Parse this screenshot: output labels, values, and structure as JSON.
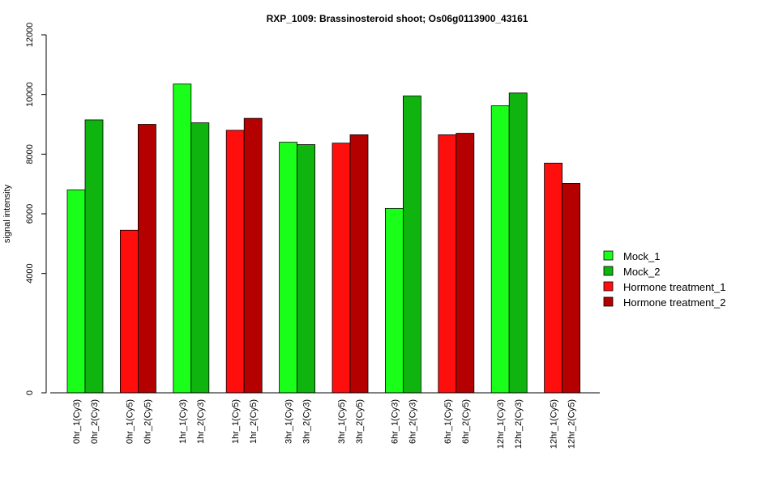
{
  "chart_data": {
    "type": "bar",
    "title": "RXP_1009: Brassinosteroid shoot; Os06g0113900_43161",
    "xlabel": "",
    "ylabel": "signal intensity",
    "ylim": [
      0,
      12000
    ],
    "yticks": [
      0,
      4000,
      6000,
      8000,
      10000,
      12000
    ],
    "legend_position": "right",
    "legend": [
      {
        "name": "Mock_1",
        "color": "#19ff19"
      },
      {
        "name": "Mock_2",
        "color": "#0fb40f"
      },
      {
        "name": "Hormone treatment_1",
        "color": "#ff0e0e"
      },
      {
        "name": "Hormone treatment_2",
        "color": "#b50000"
      }
    ],
    "groups": [
      {
        "bars": [
          {
            "label": "0hr_1(Cy3)",
            "value": 6800,
            "color": "#19ff19"
          },
          {
            "label": "0hr_2(Cy3)",
            "value": 9150,
            "color": "#0fb40f"
          }
        ]
      },
      {
        "bars": [
          {
            "label": "0hr_1(Cy5)",
            "value": 5450,
            "color": "#ff0e0e"
          },
          {
            "label": "0hr_2(Cy5)",
            "value": 9000,
            "color": "#b50000"
          }
        ]
      },
      {
        "bars": [
          {
            "label": "1hr_1(Cy3)",
            "value": 10350,
            "color": "#19ff19"
          },
          {
            "label": "1hr_2(Cy3)",
            "value": 9050,
            "color": "#0fb40f"
          }
        ]
      },
      {
        "bars": [
          {
            "label": "1hr_1(Cy5)",
            "value": 8800,
            "color": "#ff0e0e"
          },
          {
            "label": "1hr_2(Cy5)",
            "value": 9200,
            "color": "#b50000"
          }
        ]
      },
      {
        "bars": [
          {
            "label": "3hr_1(Cy3)",
            "value": 8400,
            "color": "#19ff19"
          },
          {
            "label": "3hr_2(Cy3)",
            "value": 8320,
            "color": "#0fb40f"
          }
        ]
      },
      {
        "bars": [
          {
            "label": "3hr_1(Cy5)",
            "value": 8370,
            "color": "#ff0e0e"
          },
          {
            "label": "3hr_2(Cy5)",
            "value": 8650,
            "color": "#b50000"
          }
        ]
      },
      {
        "bars": [
          {
            "label": "6hr_1(Cy3)",
            "value": 6180,
            "color": "#19ff19"
          },
          {
            "label": "6hr_2(Cy3)",
            "value": 9950,
            "color": "#0fb40f"
          }
        ]
      },
      {
        "bars": [
          {
            "label": "6hr_1(Cy5)",
            "value": 8650,
            "color": "#ff0e0e"
          },
          {
            "label": "6hr_2(Cy5)",
            "value": 8700,
            "color": "#b50000"
          }
        ]
      },
      {
        "bars": [
          {
            "label": "12hr_1(Cy3)",
            "value": 9620,
            "color": "#19ff19"
          },
          {
            "label": "12hr_2(Cy3)",
            "value": 10050,
            "color": "#0fb40f"
          }
        ]
      },
      {
        "bars": [
          {
            "label": "12hr_1(Cy5)",
            "value": 7700,
            "color": "#ff0e0e"
          },
          {
            "label": "12hr_2(Cy5)",
            "value": 7020,
            "color": "#b50000"
          }
        ]
      }
    ]
  }
}
